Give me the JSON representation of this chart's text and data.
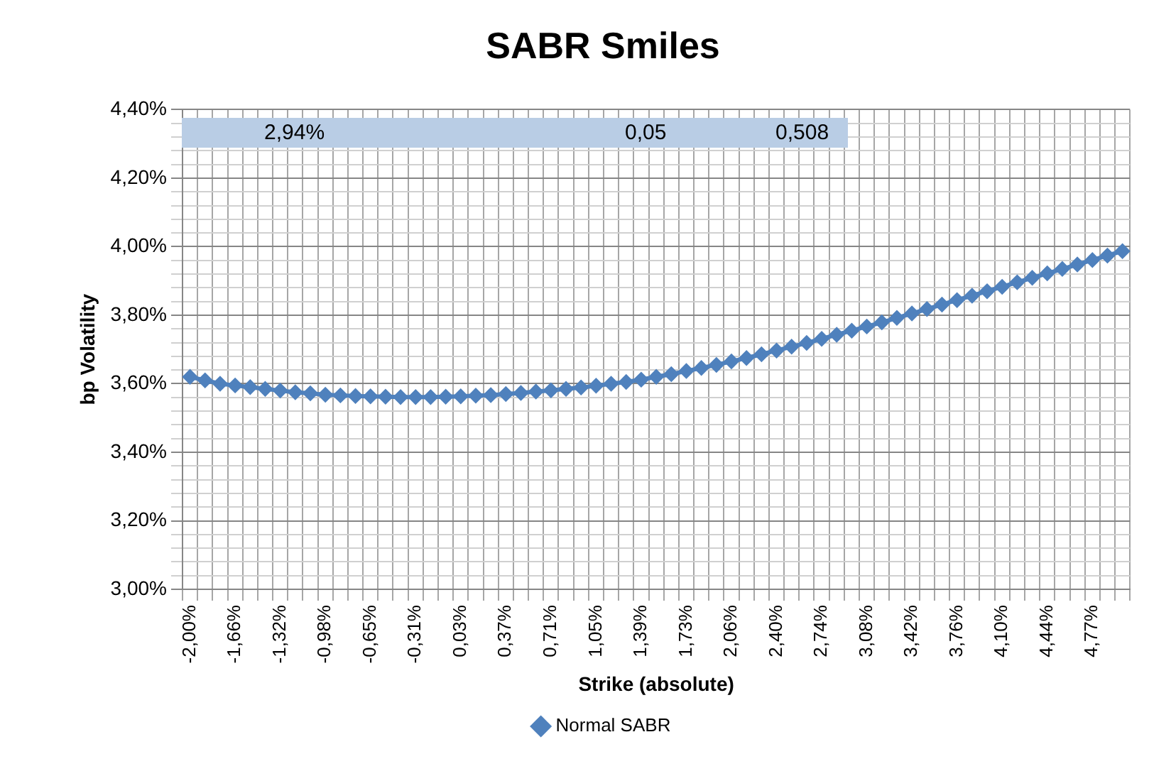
{
  "chart_data": {
    "type": "line",
    "title": "SABR Smiles",
    "xlabel": "Strike (absolute)",
    "ylabel": "bp Volatility",
    "categories": [
      "-2,00%",
      null,
      null,
      "-1,66%",
      null,
      null,
      "-1,32%",
      null,
      null,
      "-0,98%",
      null,
      null,
      "-0,65%",
      null,
      null,
      "-0,31%",
      null,
      null,
      "0,03%",
      null,
      null,
      "0,37%",
      null,
      null,
      "0,71%",
      null,
      null,
      "1,05%",
      null,
      null,
      "1,39%",
      null,
      null,
      "1,73%",
      null,
      null,
      "2,06%",
      null,
      null,
      "2,40%",
      null,
      null,
      "2,74%",
      null,
      null,
      "3,08%",
      null,
      null,
      "3,42%",
      null,
      null,
      "3,76%",
      null,
      null,
      "4,10%",
      null,
      null,
      "4,44%",
      null,
      null,
      "4,77%",
      null,
      null
    ],
    "series": [
      {
        "name": "Normal SABR",
        "color": "#4f81bd",
        "values": [
          3.62,
          3.61,
          3.6,
          3.595,
          3.59,
          3.585,
          3.58,
          3.575,
          3.572,
          3.568,
          3.566,
          3.564,
          3.563,
          3.562,
          3.561,
          3.561,
          3.561,
          3.562,
          3.563,
          3.565,
          3.567,
          3.57,
          3.573,
          3.577,
          3.581,
          3.585,
          3.589,
          3.594,
          3.6,
          3.605,
          3.612,
          3.62,
          3.628,
          3.637,
          3.646,
          3.655,
          3.665,
          3.675,
          3.686,
          3.697,
          3.708,
          3.719,
          3.731,
          3.743,
          3.755,
          3.767,
          3.779,
          3.792,
          3.805,
          3.818,
          3.831,
          3.844,
          3.857,
          3.87,
          3.883,
          3.896,
          3.909,
          3.922,
          3.935,
          3.948,
          3.961,
          3.974,
          3.987
        ]
      }
    ],
    "ylim": [
      3,
      4.4
    ],
    "yticks": [
      {
        "value": 3,
        "label": "3,00%"
      },
      {
        "value": 3.04,
        "label": null
      },
      {
        "value": 3.08,
        "label": null
      },
      {
        "value": 3.12,
        "label": null
      },
      {
        "value": 3.16,
        "label": null
      },
      {
        "value": 3.2,
        "label": "3,20%"
      },
      {
        "value": 3.24,
        "label": null
      },
      {
        "value": 3.28,
        "label": null
      },
      {
        "value": 3.32,
        "label": null
      },
      {
        "value": 3.36,
        "label": null
      },
      {
        "value": 3.4,
        "label": "3,40%"
      },
      {
        "value": 3.44,
        "label": null
      },
      {
        "value": 3.48,
        "label": null
      },
      {
        "value": 3.52,
        "label": null
      },
      {
        "value": 3.56,
        "label": null
      },
      {
        "value": 3.6,
        "label": "3,60%"
      },
      {
        "value": 3.64,
        "label": null
      },
      {
        "value": 3.68,
        "label": null
      },
      {
        "value": 3.72,
        "label": null
      },
      {
        "value": 3.76,
        "label": null
      },
      {
        "value": 3.8,
        "label": "3,80%"
      },
      {
        "value": 3.84,
        "label": null
      },
      {
        "value": 3.88,
        "label": null
      },
      {
        "value": 3.92,
        "label": null
      },
      {
        "value": 3.96,
        "label": null
      },
      {
        "value": 4,
        "label": "4,00%"
      },
      {
        "value": 4.04,
        "label": null
      },
      {
        "value": 4.08,
        "label": null
      },
      {
        "value": 4.12,
        "label": null
      },
      {
        "value": 4.16,
        "label": null
      },
      {
        "value": 4.2,
        "label": "4,20%"
      },
      {
        "value": 4.24,
        "label": null
      },
      {
        "value": 4.28,
        "label": null
      },
      {
        "value": 4.32,
        "label": null
      },
      {
        "value": 4.36,
        "label": null
      },
      {
        "value": 4.4,
        "label": "4,40%"
      }
    ],
    "grid": true,
    "legend": "bottom",
    "marker": "diamond",
    "line_style": "solid",
    "annotations": [
      "2,94%",
      "0,05",
      "0,508"
    ]
  }
}
